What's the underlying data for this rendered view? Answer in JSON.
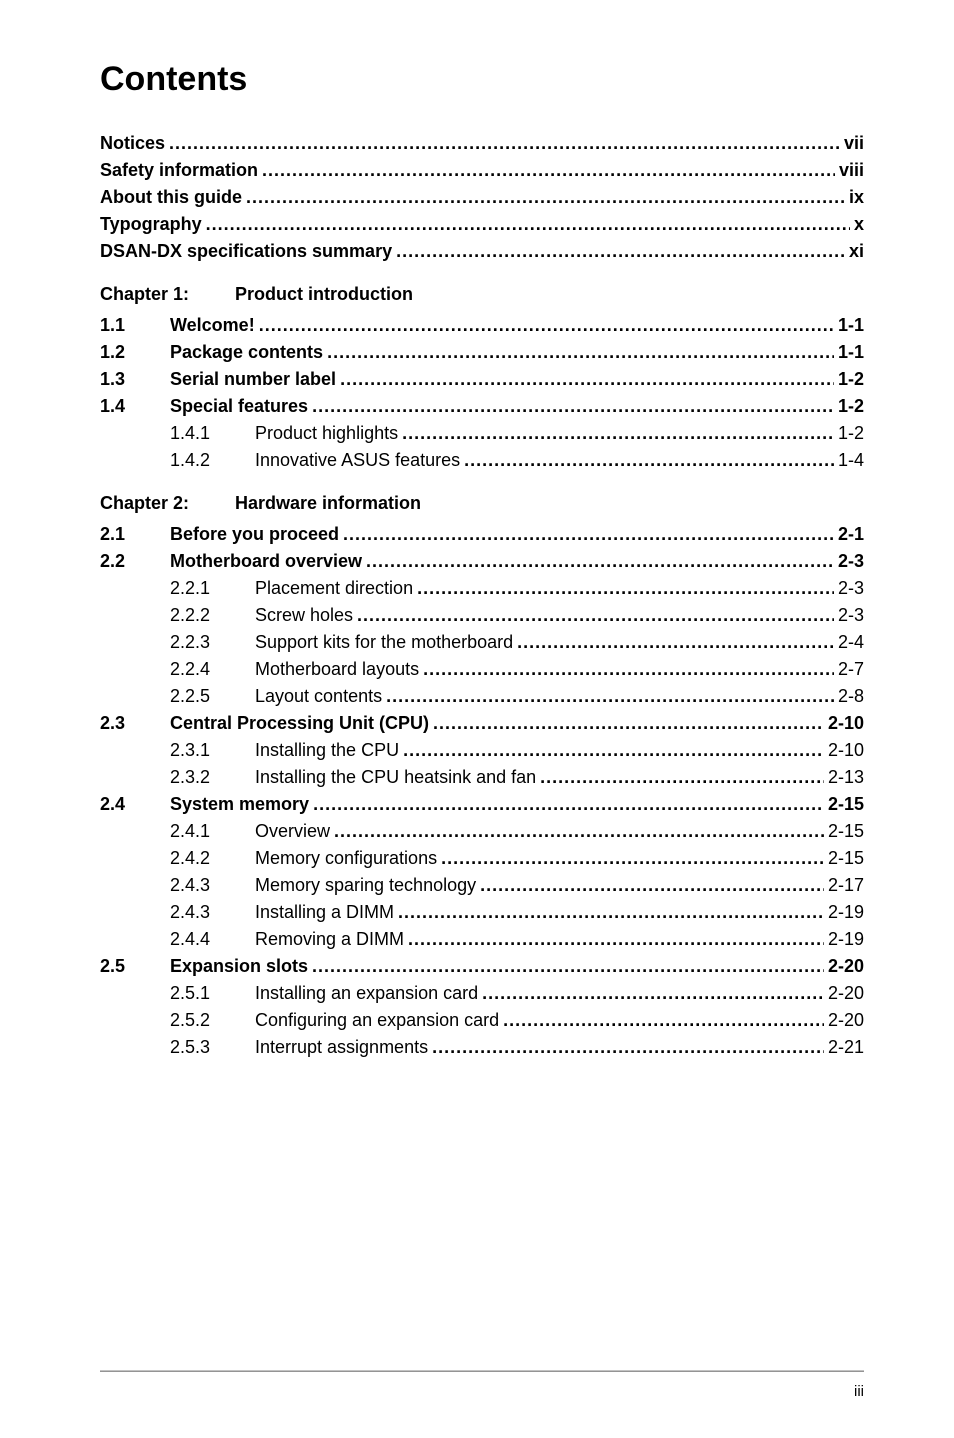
{
  "doc": {
    "title": "Contents",
    "page_footer": "iii"
  },
  "front": [
    {
      "label": "Notices",
      "page": "vii"
    },
    {
      "label": "Safety information",
      "page": "viii"
    },
    {
      "label": "About this guide",
      "page": "ix"
    },
    {
      "label": "Typography",
      "page": "x"
    },
    {
      "label": "DSAN-DX specifications summary",
      "page": "xi"
    }
  ],
  "chapters": [
    {
      "num": "Chapter 1:",
      "title": "Product introduction",
      "sections": [
        {
          "num": "1.1",
          "label": "Welcome!",
          "page": "1-1",
          "children": []
        },
        {
          "num": "1.2",
          "label": "Package contents",
          "page": "1-1",
          "children": []
        },
        {
          "num": "1.3",
          "label": "Serial number label",
          "page": "1-2",
          "children": []
        },
        {
          "num": "1.4",
          "label": "Special features",
          "page": "1-2",
          "children": [
            {
              "num": "1.4.1",
              "label": "Product highlights",
              "page": "1-2"
            },
            {
              "num": "1.4.2",
              "label": "Innovative ASUS features",
              "page": "1-4"
            }
          ]
        }
      ]
    },
    {
      "num": "Chapter 2:",
      "title": "Hardware information",
      "sections": [
        {
          "num": "2.1",
          "label": "Before you proceed",
          "page": "2-1",
          "children": []
        },
        {
          "num": "2.2",
          "label": "Motherboard overview",
          "page": "2-3",
          "children": [
            {
              "num": "2.2.1",
              "label": "Placement direction",
              "page": "2-3"
            },
            {
              "num": "2.2.2",
              "label": "Screw holes",
              "page": "2-3"
            },
            {
              "num": "2.2.3",
              "label": "Support kits for the motherboard",
              "page": "2-4"
            },
            {
              "num": "2.2.4",
              "label": "Motherboard layouts",
              "page": "2-7"
            },
            {
              "num": "2.2.5",
              "label": "Layout contents",
              "page": "2-8"
            }
          ]
        },
        {
          "num": "2.3",
          "label": "Central Processing Unit (CPU)",
          "page": "2-10",
          "children": [
            {
              "num": "2.3.1",
              "label": "Installing the CPU",
              "page": "2-10"
            },
            {
              "num": "2.3.2",
              "label": "Installing the CPU heatsink and fan",
              "page": "2-13"
            }
          ]
        },
        {
          "num": "2.4",
          "label": "System memory",
          "page": "2-15",
          "children": [
            {
              "num": "2.4.1",
              "label": "Overview",
              "page": "2-15"
            },
            {
              "num": "2.4.2",
              "label": "Memory configurations",
              "page": "2-15"
            },
            {
              "num": "2.4.3",
              "label": "Memory sparing technology",
              "page": "2-17"
            },
            {
              "num": "2.4.3",
              "label": "Installing a DIMM",
              "page": "2-19"
            },
            {
              "num": "2.4.4",
              "label": "Removing a DIMM",
              "page": "2-19"
            }
          ]
        },
        {
          "num": "2.5",
          "label": "Expansion slots",
          "page": "2-20",
          "children": [
            {
              "num": "2.5.1",
              "label": "Installing an expansion card",
              "page": "2-20"
            },
            {
              "num": "2.5.2",
              "label": "Configuring an expansion card",
              "page": "2-20"
            },
            {
              "num": "2.5.3",
              "label": "Interrupt assignments",
              "page": "2-21"
            }
          ]
        }
      ]
    }
  ]
}
